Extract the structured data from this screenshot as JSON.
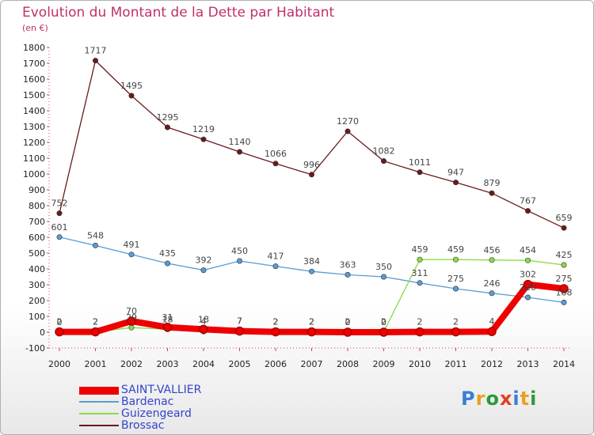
{
  "chart_data": {
    "type": "line",
    "title": "Evolution du Montant de la Dette par Habitant",
    "subtitle": "(en €)",
    "xlabel": "",
    "ylabel": "",
    "categories": [
      "2000",
      "2001",
      "2002",
      "2003",
      "2004",
      "2005",
      "2006",
      "2007",
      "2008",
      "2009",
      "2010",
      "2011",
      "2012",
      "2013",
      "2014"
    ],
    "ylim": [
      -100,
      1800
    ],
    "yticks": [
      -100,
      0,
      100,
      200,
      300,
      400,
      500,
      600,
      700,
      800,
      900,
      1000,
      1100,
      1200,
      1300,
      1400,
      1500,
      1600,
      1700,
      1800
    ],
    "grid": false,
    "legend_position": "bottom-left",
    "series": [
      {
        "name": "Brossac",
        "color": "#6b1a1a",
        "values": [
          752,
          1717,
          1495,
          1295,
          1219,
          1140,
          1066,
          996,
          1270,
          1082,
          1011,
          947,
          879,
          767,
          659
        ]
      },
      {
        "name": "Bardenac",
        "color": "#5a9bd5",
        "values": [
          601,
          548,
          491,
          435,
          392,
          450,
          417,
          384,
          363,
          350,
          311,
          275,
          246,
          220,
          188
        ]
      },
      {
        "name": "Guizengeard",
        "color": "#88dd44",
        "values": [
          0,
          2,
          29,
          18,
          4,
          7,
          2,
          2,
          2,
          2,
          459,
          459,
          456,
          454,
          425
        ]
      },
      {
        "name": "SAINT-VALLIER",
        "color": "#ee0000",
        "values": [
          2,
          2,
          70,
          31,
          18,
          7,
          2,
          2,
          0,
          0,
          2,
          2,
          4,
          302,
          275
        ]
      }
    ]
  },
  "brand": {
    "letters": [
      "P",
      "r",
      "o",
      "x",
      "i",
      "t",
      "i"
    ],
    "colors": [
      "#3a7fd5",
      "#e8a020",
      "#2c9a3a",
      "#e04020",
      "#3a7fd5",
      "#e8a020",
      "#2c9a3a"
    ]
  }
}
